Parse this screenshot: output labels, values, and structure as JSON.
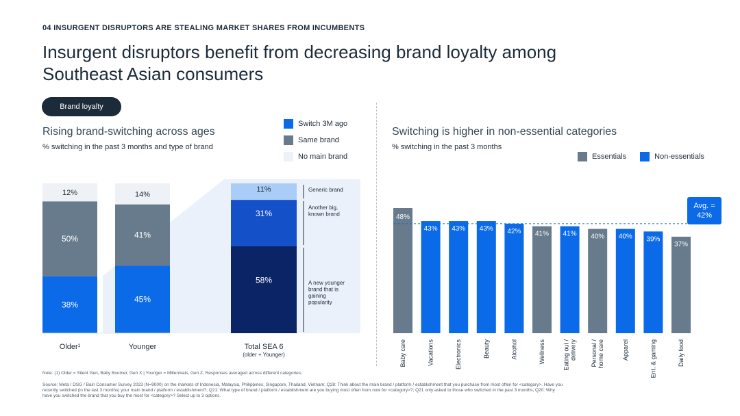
{
  "header": {
    "kicker": "04 INSURGENT DISRUPTORS ARE STEALING MARKET SHARES FROM INCUMBENTS",
    "title": "Insurgent disruptors benefit from decreasing brand loyalty among Southeast Asian consumers",
    "pill": "Brand loyalty"
  },
  "left": {
    "subtitle": "Rising brand-switching across ages",
    "caption": "% switching in the past 3 months and type of brand",
    "legend": [
      {
        "label": "Switch 3M ago",
        "color": "#0a6ae8"
      },
      {
        "label": "Same brand",
        "color": "#677b8c"
      },
      {
        "label": "No main brand",
        "color": "#eef1f5"
      }
    ]
  },
  "right": {
    "subtitle": "Switching is higher in non-essential categories",
    "caption": "% switching in the past 3 months",
    "legend": [
      {
        "label": "Essentials",
        "color": "#677b8c"
      },
      {
        "label": "Non-essentials",
        "color": "#0a6ae8"
      }
    ],
    "avg_label": "Avg. = 42%"
  },
  "chart_data": [
    {
      "type": "bar",
      "stacked": true,
      "title": "Rising brand-switching across ages",
      "subtitle": "% switching in the past 3 months and type of brand",
      "categories": [
        "Older¹",
        "Younger"
      ],
      "series": [
        {
          "name": "Switch 3M ago",
          "color": "#0a6ae8",
          "values": [
            38,
            45
          ]
        },
        {
          "name": "Same brand",
          "color": "#677b8c",
          "values": [
            50,
            41
          ]
        },
        {
          "name": "No main brand",
          "color": "#eef1f5",
          "values": [
            12,
            14
          ]
        }
      ],
      "ylim": [
        0,
        100
      ]
    },
    {
      "type": "bar",
      "stacked": true,
      "title": "Total SEA 6",
      "category": "Total SEA 6",
      "category_note": "(older + Younger)",
      "series": [
        {
          "name": "A new younger brand that is gaining popularity",
          "color": "#0b2466",
          "value": 58
        },
        {
          "name": "Another big, known brand",
          "color": "#1450c8",
          "value": 31
        },
        {
          "name": "Generic brand",
          "color": "#a9cdf7",
          "value": 11
        }
      ],
      "ylim": [
        0,
        100
      ]
    },
    {
      "type": "bar",
      "title": "Switching is higher in non-essential categories",
      "subtitle": "% switching in the past 3 months",
      "categories": [
        "Baby care",
        "Vacations",
        "Electronics",
        "Beauty",
        "Alcohol",
        "Wellness",
        "Eating out / delivery",
        "Personal / home care",
        "Apparel",
        "Ent. & gaming",
        "Daily food"
      ],
      "values": [
        48,
        43,
        43,
        43,
        42,
        41,
        41,
        40,
        40,
        39,
        37
      ],
      "groups": [
        "Essentials",
        "Non-essentials",
        "Non-essentials",
        "Non-essentials",
        "Non-essentials",
        "Essentials",
        "Non-essentials",
        "Essentials",
        "Non-essentials",
        "Non-essentials",
        "Essentials"
      ],
      "group_colors": {
        "Essentials": "#677b8c",
        "Non-essentials": "#0a6ae8"
      },
      "average": 42,
      "ylim": [
        0,
        48
      ]
    }
  ],
  "notes": {
    "note": "Note: (1) Older = Silent Gen, Baby Boomer, Gen X | Younger = Millennials, Gen Z; Responses averaged across different categories;",
    "source": "Source: Meta / DSG / Bain Consumer Survey 2023 (N=9000) on the markets of Indonesia, Malaysia, Philippines, Singapore, Thailand, Vietnam; Q28: Think about the main brand / platform / establishment that you purchase from most often for <category>. Have you recently switched (in the last 3 months) your main brand / platform / establishment?; Q21: What type of brand / platform / establishment are you buying most often from now for <category>?; Q21 only asked to those who switched in the past 3 months, Q20: Why have you switched the brand that you buy the most for <category>? Select up to 3 options."
  }
}
